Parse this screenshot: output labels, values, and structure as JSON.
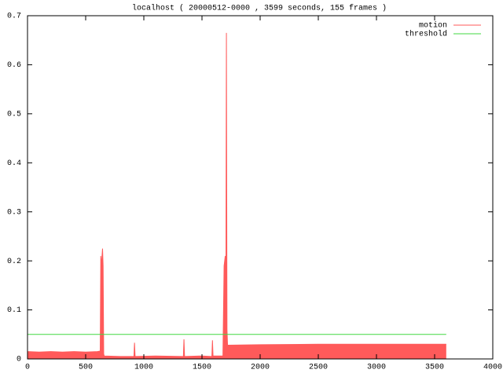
{
  "chart_data": {
    "type": "line",
    "title": "localhost ( 20000512-0000 , 3599 seconds, 155 frames )",
    "x": [
      0,
      100,
      200,
      300,
      400,
      500,
      600,
      625,
      630,
      635,
      645,
      650,
      655,
      660,
      800,
      915,
      920,
      925,
      1100,
      1340,
      1345,
      1350,
      1500,
      1585,
      1590,
      1595,
      1680,
      1690,
      1700,
      1705,
      1710,
      1715,
      1720,
      2000,
      2500,
      3000,
      3600
    ],
    "series": [
      {
        "name": "motion",
        "color": "#ff5a5a",
        "values": [
          0.015,
          0.014,
          0.015,
          0.014,
          0.015,
          0.014,
          0.015,
          0.016,
          0.21,
          0.19,
          0.225,
          0.19,
          0.01,
          0.006,
          0.005,
          0.005,
          0.033,
          0.005,
          0.006,
          0.005,
          0.04,
          0.005,
          0.006,
          0.005,
          0.038,
          0.006,
          0.006,
          0.19,
          0.21,
          0.05,
          0.665,
          0.06,
          0.028,
          0.029,
          0.03,
          0.03,
          0.03
        ]
      },
      {
        "name": "threshold",
        "color": "#40d840",
        "x": [
          0,
          3600
        ],
        "values": [
          0.05,
          0.05
        ]
      }
    ],
    "xlim": [
      0,
      4000
    ],
    "xticks": [
      0,
      500,
      1000,
      1500,
      2000,
      2500,
      3000,
      3500,
      4000
    ],
    "ylim": [
      0,
      0.7
    ],
    "yticks": [
      0,
      0.1,
      0.2,
      0.3,
      0.4,
      0.5,
      0.6,
      0.7
    ],
    "legend": "top-right"
  }
}
